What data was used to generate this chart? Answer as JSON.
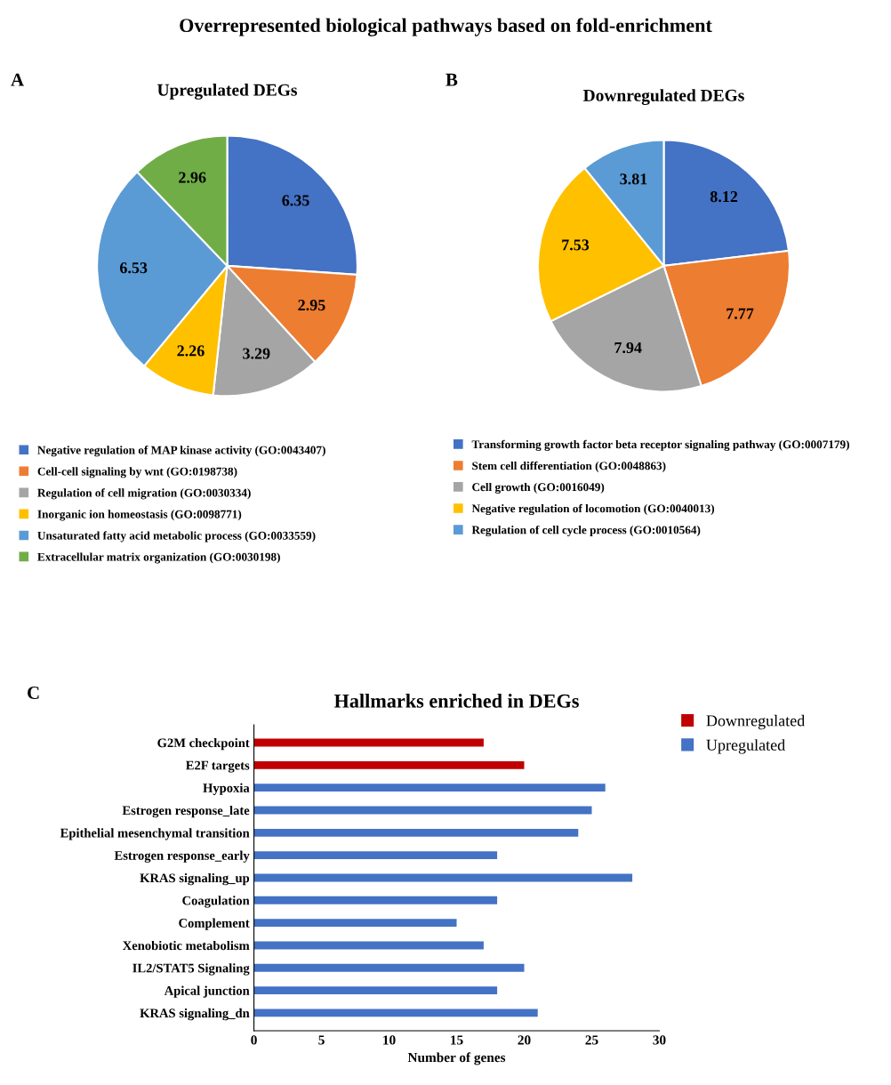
{
  "chart_data": [
    {
      "type": "pie",
      "title": "Upregulated DEGs",
      "annotations": [
        "Overrepresented biological pathways based on fold-enrichment",
        "A"
      ],
      "categories": [
        "Negative regulation of MAP kinase activity (GO:0043407)",
        "Cell-cell signaling by wnt (GO:0198738)",
        "Regulation of cell migration (GO:0030334)",
        "Inorganic ion homeostasis (GO:0098771)",
        "Unsaturated fatty acid metabolic process (GO:0033559)",
        "Extracellular matrix organization (GO:0030198)"
      ],
      "values": [
        6.35,
        2.95,
        3.29,
        2.26,
        6.53,
        2.96
      ],
      "colors": [
        "#4472c4",
        "#ed7d31",
        "#a5a5a5",
        "#ffc000",
        "#5b9bd5",
        "#70ad47"
      ],
      "data_labels": true,
      "legend": "bottom"
    },
    {
      "type": "pie",
      "title": "Downregulated DEGs",
      "annotations": [
        "B"
      ],
      "categories": [
        "Transforming growth factor beta receptor signaling pathway (GO:0007179)",
        "Stem cell differentiation (GO:0048863)",
        "Cell growth (GO:0016049)",
        "Negative regulation of locomotion (GO:0040013)",
        "Regulation of cell cycle process (GO:0010564)"
      ],
      "values": [
        8.12,
        7.77,
        7.94,
        7.53,
        3.81
      ],
      "colors": [
        "#4472c4",
        "#ed7d31",
        "#a5a5a5",
        "#ffc000",
        "#5b9bd5"
      ],
      "data_labels": true,
      "legend": "bottom"
    },
    {
      "type": "bar",
      "orientation": "horizontal",
      "title": "Hallmarks enriched in DEGs",
      "xlabel": "Number of genes",
      "annotations": [
        "C"
      ],
      "categories": [
        "G2M checkpoint",
        "E2F targets",
        "Hypoxia",
        "Estrogen response_late",
        "Epithelial mesenchymal transition",
        "Estrogen response_early",
        "KRAS signaling_up",
        "Coagulation",
        "Complement",
        "Xenobiotic metabolism",
        "IL2/STAT5 Signaling",
        "Apical junction",
        "KRAS signaling_dn"
      ],
      "series": [
        {
          "name": "Downregulated",
          "color": "#c00000",
          "values": [
            17,
            20,
            null,
            null,
            null,
            null,
            null,
            null,
            null,
            null,
            null,
            null,
            null
          ]
        },
        {
          "name": "Upregulated",
          "color": "#4472c4",
          "values": [
            null,
            null,
            26,
            25,
            24,
            18,
            28,
            18,
            15,
            17,
            20,
            18,
            21
          ]
        }
      ],
      "xlim": [
        0,
        30
      ],
      "xticks": [
        0,
        5,
        10,
        15,
        20,
        25,
        30
      ],
      "grid": false,
      "legend": "top right"
    }
  ]
}
